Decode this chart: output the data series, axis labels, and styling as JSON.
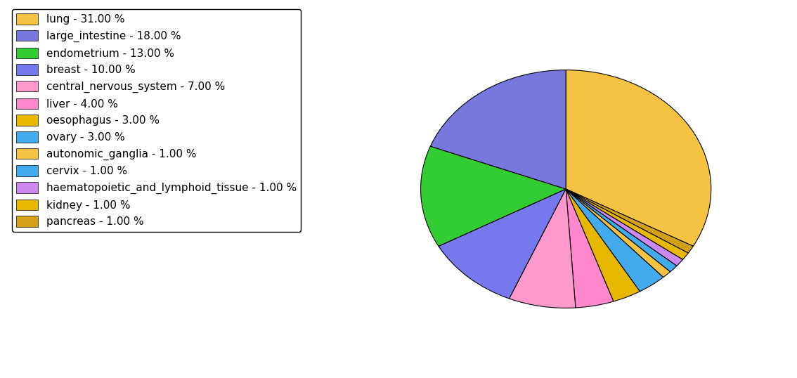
{
  "labels": [
    "lung",
    "large_intestine",
    "endometrium",
    "breast",
    "central_nervous_system",
    "liver",
    "oesophagus",
    "ovary",
    "autonomic_ganglia",
    "cervix",
    "haematopoietic_and_lymphoid_tissue",
    "kidney",
    "pancreas"
  ],
  "values": [
    31,
    18,
    13,
    10,
    7,
    4,
    3,
    3,
    1,
    1,
    1,
    1,
    1
  ],
  "colors": [
    "#F5C242",
    "#7777DD",
    "#33CC33",
    "#7777EE",
    "#FF99CC",
    "#FF88CC",
    "#E8B800",
    "#44AAEE",
    "#F5C242",
    "#44AAEE",
    "#CC88EE",
    "#E8B800",
    "#D4A017"
  ],
  "legend_labels": [
    "lung - 31.00 %",
    "large_intestine - 18.00 %",
    "endometrium - 13.00 %",
    "breast - 10.00 %",
    "central_nervous_system - 7.00 %",
    "liver - 4.00 %",
    "oesophagus - 3.00 %",
    "ovary - 3.00 %",
    "autonomic_ganglia - 1.00 %",
    "cervix - 1.00 %",
    "haematopoietic_and_lymphoid_tissue - 1.00 %",
    "kidney - 1.00 %",
    "pancreas - 1.00 %"
  ],
  "legend_colors": [
    "#F5C242",
    "#7777DD",
    "#33CC33",
    "#7777EE",
    "#FF99CC",
    "#FF88CC",
    "#E8B800",
    "#44AAEE",
    "#F5C242",
    "#44AAEE",
    "#CC88EE",
    "#E8B800",
    "#D4A017"
  ],
  "figsize": [
    11.34,
    5.38
  ],
  "dpi": 100,
  "startangle": 90,
  "background_color": "#FFFFFF"
}
